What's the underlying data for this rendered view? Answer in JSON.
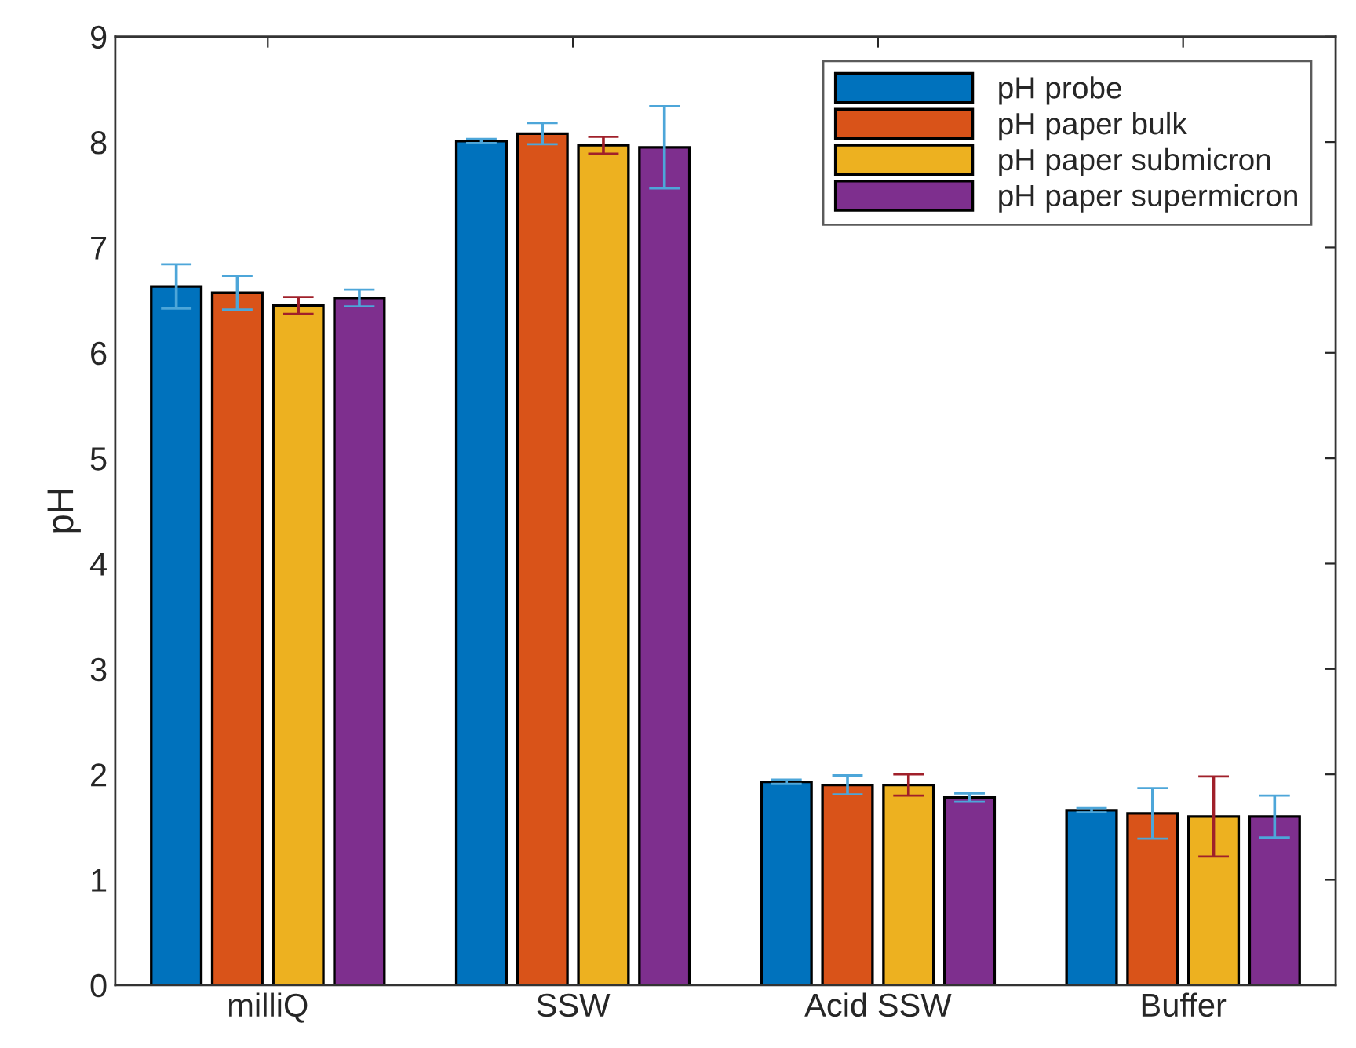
{
  "chart_data": {
    "type": "bar",
    "ylabel": "pH",
    "categories": [
      "milliQ",
      "SSW",
      "Acid SSW",
      "Buffer"
    ],
    "series": [
      {
        "name": "pH probe",
        "color": "#0072bd",
        "values": [
          6.63,
          8.01,
          1.93,
          1.66
        ],
        "errors": [
          0.21,
          0.02,
          0.02,
          0.02
        ]
      },
      {
        "name": "pH paper bulk",
        "color": "#d95319",
        "values": [
          6.57,
          8.08,
          1.9,
          1.63
        ],
        "errors": [
          0.16,
          0.1,
          0.09,
          0.24
        ]
      },
      {
        "name": "pH paper submicron",
        "color": "#edb120",
        "values": [
          6.45,
          7.97,
          1.9,
          1.6
        ],
        "errors": [
          0.08,
          0.08,
          0.1,
          0.38
        ]
      },
      {
        "name": "pH paper supermicron",
        "color": "#7e2f8e",
        "values": [
          6.52,
          7.95,
          1.78,
          1.6
        ],
        "errors": [
          0.08,
          0.39,
          0.04,
          0.2
        ]
      }
    ],
    "ylim": [
      0,
      9
    ],
    "yticks": [
      0,
      1,
      2,
      3,
      4,
      5,
      6,
      7,
      8,
      9
    ],
    "grid": false,
    "legend": "top right"
  }
}
